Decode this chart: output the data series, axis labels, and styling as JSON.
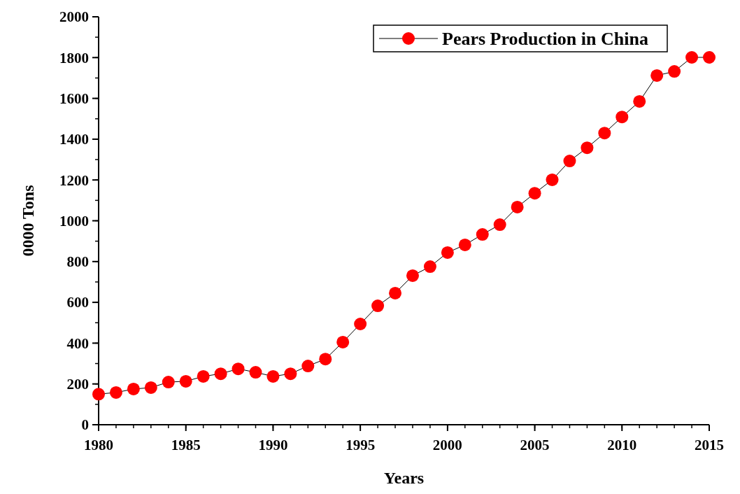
{
  "chart_data": {
    "type": "line",
    "xlabel": "Years",
    "ylabel": "0000 Tons",
    "x": [
      1980,
      1981,
      1982,
      1983,
      1984,
      1985,
      1986,
      1987,
      1988,
      1989,
      1990,
      1991,
      1992,
      1993,
      1994,
      1995,
      1996,
      1997,
      1998,
      1999,
      2000,
      2001,
      2002,
      2003,
      2004,
      2005,
      2006,
      2007,
      2008,
      2009,
      2010,
      2011,
      2012,
      2013,
      2014,
      2015
    ],
    "series": [
      {
        "name": "Pears Production in China",
        "color": "#ff0000",
        "values": [
          150,
          158,
          175,
          182,
          209,
          213,
          237,
          250,
          274,
          257,
          237,
          250,
          288,
          322,
          405,
          494,
          583,
          645,
          731,
          775,
          844,
          882,
          933,
          981,
          1067,
          1135,
          1201,
          1293,
          1358,
          1430,
          1509,
          1585,
          1712,
          1732,
          1801,
          1801
        ]
      }
    ],
    "xlim": [
      1980,
      2015
    ],
    "xticks": [
      1980,
      1985,
      1990,
      1995,
      2000,
      2005,
      2010,
      2015
    ],
    "ylim": [
      0,
      2000
    ],
    "yticks": [
      0,
      200,
      400,
      600,
      800,
      1000,
      1200,
      1400,
      1600,
      1800,
      2000
    ],
    "marker": "circle",
    "line_style": "solid",
    "legend": "top right",
    "grid": false
  }
}
